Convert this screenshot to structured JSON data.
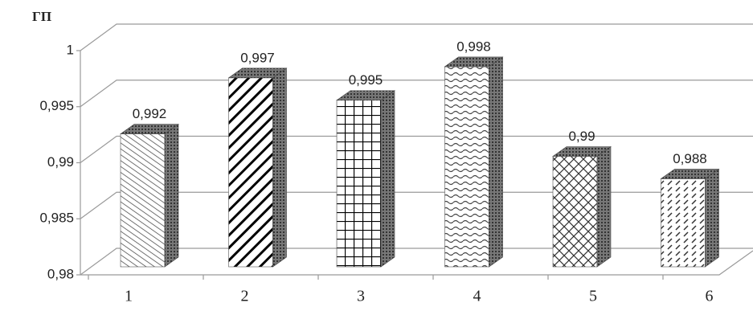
{
  "chart_data": {
    "type": "bar",
    "y_label": "ГП",
    "categories": [
      "1",
      "2",
      "3",
      "4",
      "5",
      "6"
    ],
    "values": [
      0.992,
      0.997,
      0.995,
      0.998,
      0.99,
      0.988
    ],
    "value_labels": [
      "0,992",
      "0,997",
      "0,995",
      "0,998",
      "0,99",
      "0,988"
    ],
    "ylim": [
      0.98,
      1
    ],
    "yticks": [
      {
        "value": 0.98,
        "label": "0,98"
      },
      {
        "value": 0.985,
        "label": "0,985"
      },
      {
        "value": 0.99,
        "label": "0,99"
      },
      {
        "value": 0.995,
        "label": "0,995"
      },
      1
    ],
    "grid": true
  }
}
